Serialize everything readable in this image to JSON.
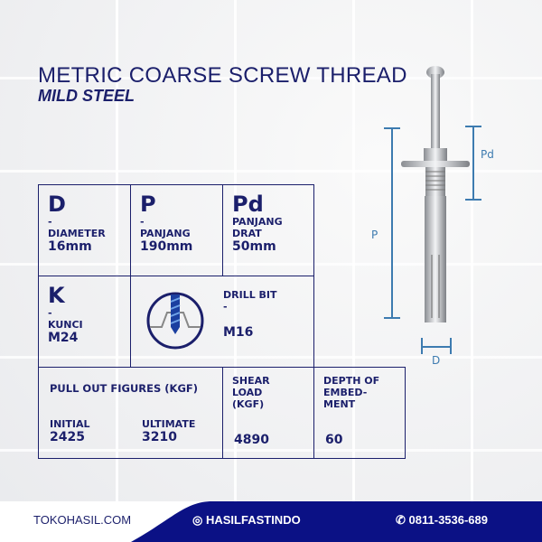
{
  "header": {
    "title": "METRIC COARSE SCREW THREAD",
    "subtitle": "MILD STEEL"
  },
  "specs": {
    "d": {
      "symbol": "D",
      "dash": "-",
      "label": "DIAMETER",
      "value": "16mm"
    },
    "p": {
      "symbol": "P",
      "dash": "-",
      "label": "PANJANG",
      "value": "190mm"
    },
    "pd": {
      "symbol": "Pd",
      "label": "PANJANG DRAT",
      "value": "50mm"
    },
    "k": {
      "symbol": "K",
      "dash": "-",
      "label": "KUNCI",
      "value": "M24"
    },
    "drill": {
      "label": "DRILL BIT",
      "dash": "-",
      "value": "M16",
      "icon": "drill-bit-icon"
    },
    "pull": {
      "label": "PULL OUT FIGURES (KGF)",
      "initial_label": "INITIAL",
      "initial": "2425",
      "ultimate_label": "ULTIMATE",
      "ultimate": "3210"
    },
    "shear": {
      "label": "SHEAR LOAD (KGF)",
      "value": "4890"
    },
    "depth": {
      "label": "DEPTH OF EMBED- MENT",
      "value": "60"
    }
  },
  "diagram": {
    "pd": "Pd",
    "p": "P",
    "d": "D"
  },
  "footer": {
    "website": "TOKOHASIL.COM",
    "instagram": "HASILFASTINDO",
    "whatsapp": "0811-3536-689",
    "accent": "#0b1185"
  }
}
